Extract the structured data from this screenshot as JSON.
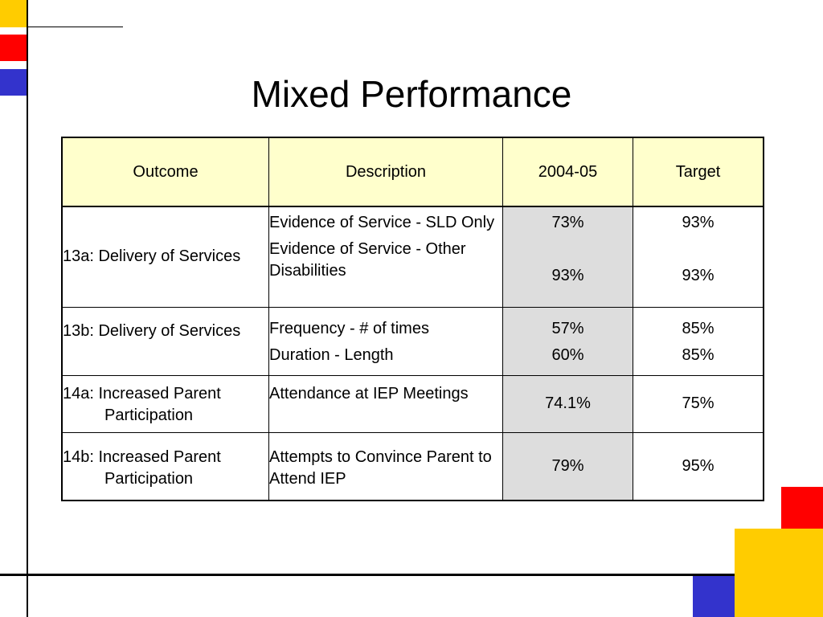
{
  "slide": {
    "title": "Mixed Performance"
  },
  "table": {
    "headers": [
      "Outcome",
      "Description",
      "2004-05",
      "Target"
    ],
    "rows": [
      {
        "outcome": "13a: Delivery of Services",
        "descriptions": [
          "Evidence of Service - SLD Only",
          "Evidence of Service - Other Disabilities"
        ],
        "values_2004_05": [
          "73%",
          "93%"
        ],
        "targets": [
          "93%",
          "93%"
        ]
      },
      {
        "outcome": "13b: Delivery of Services",
        "descriptions": [
          "Frequency - # of times",
          "Duration - Length"
        ],
        "values_2004_05": [
          "57%",
          "60%"
        ],
        "targets": [
          "85%",
          "85%"
        ]
      },
      {
        "outcome": "14a: Increased Parent Participation",
        "descriptions": [
          "Attendance at IEP Meetings"
        ],
        "values_2004_05": [
          "74.1%"
        ],
        "targets": [
          "75%"
        ]
      },
      {
        "outcome": "14b: Increased Parent Participation",
        "descriptions": [
          "Attempts to Convince Parent to Attend IEP"
        ],
        "values_2004_05": [
          "79%"
        ],
        "targets": [
          "95%"
        ]
      }
    ]
  },
  "colors": {
    "header_fill": "#FFFFCC",
    "shaded_column": "#DDDDDD",
    "accent_yellow": "#FFCC00",
    "accent_red": "#FF0000",
    "accent_blue": "#3333CC"
  }
}
